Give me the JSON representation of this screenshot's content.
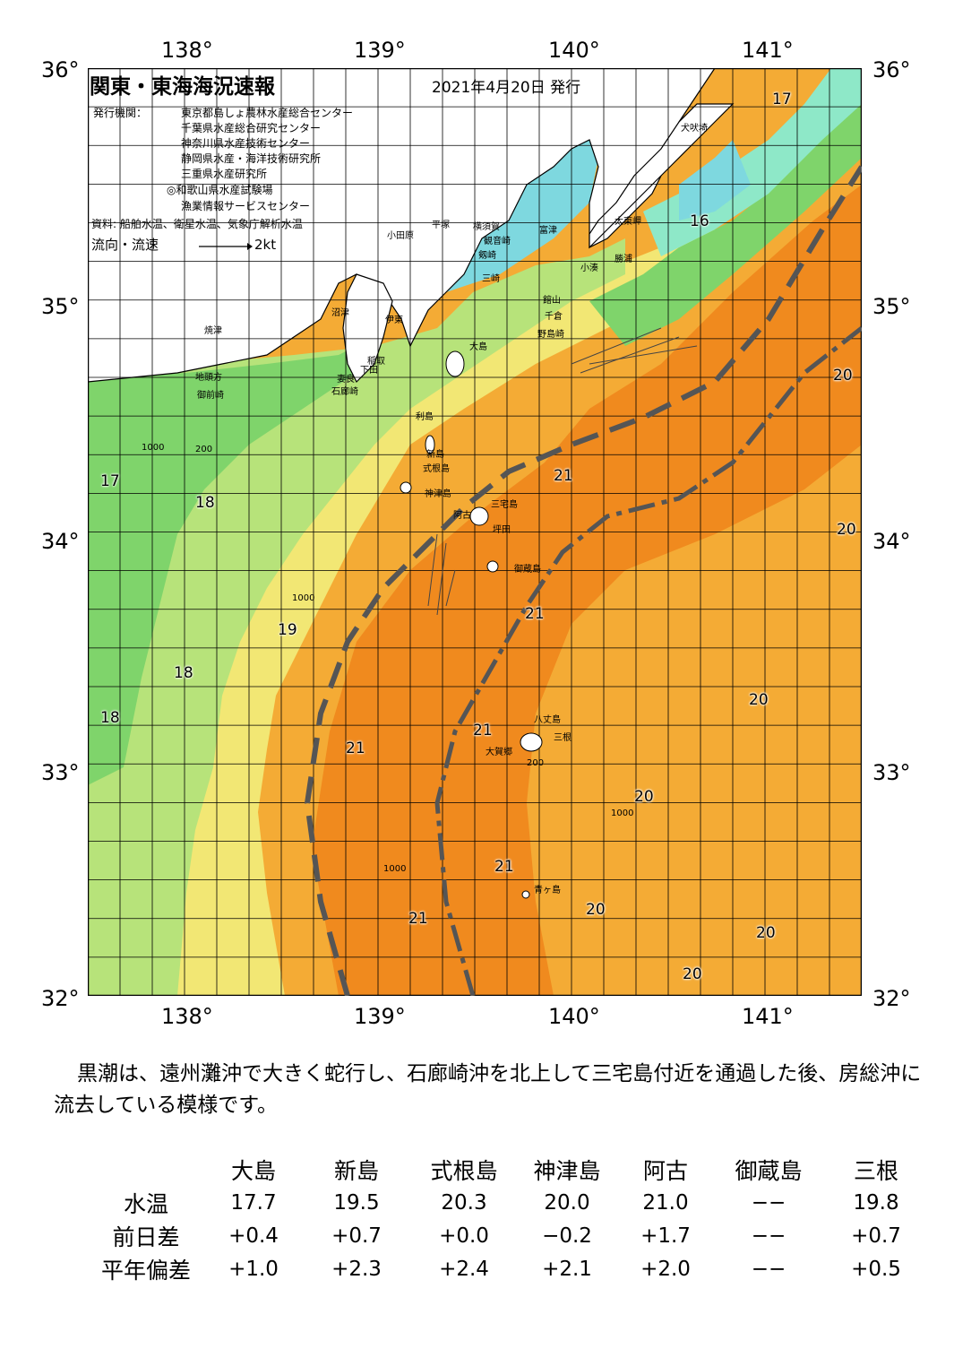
{
  "title": "関東・東海海況速報",
  "issue_date": "2021年4月20日 発行",
  "issuing_org_label": "発行機関：",
  "issuing_orgs": [
    "東京都島しょ農林水産総合センター",
    "千葉県水産総合研究センター",
    "神奈川県水産技術センター",
    "静岡県水産・海洋技術研究所",
    "三重県水産研究所",
    "◎和歌山県水産試験場",
    "漁業情報サービスセンター"
  ],
  "data_sources": "資料: 船舶水温、衛星水温、気象庁解析水温",
  "flow_legend": {
    "label": "流向・流速",
    "scale": "2kt"
  },
  "axes": {
    "lon_labels": [
      "138°",
      "139°",
      "140°",
      "141°"
    ],
    "lat_labels": [
      "36°",
      "35°",
      "34°",
      "33°",
      "32°"
    ]
  },
  "place_names": {
    "inubosaki": "犬吠埼",
    "taitomisaki": "太東岬",
    "katsuura": "勝浦",
    "kominato": "小湊",
    "futtsu": "富津",
    "yokosuka": "横須賀",
    "kannonzaki": "観音崎",
    "odawara": "小田原",
    "hiratsuka": "平塚",
    "tateyama": "館山",
    "chikura": "千倉",
    "nojimazaki": "野島崎",
    "numazu": "沼津",
    "ito": "伊東",
    "yaizu": "焼津",
    "omaezaki": "御前崎",
    "jitokata": "地頭方",
    "inatori": "稲取",
    "shimoda": "下田",
    "mera": "妻良",
    "irozaki": "石廊崎",
    "oshima": "大島",
    "toshima": "利島",
    "niijima": "新島",
    "shikinejima": "式根島",
    "kozushima": "神津島",
    "miyakejima": "三宅島",
    "tsubota": "坪田",
    "ako": "阿古",
    "mikurajima": "御蔵島",
    "hachijojima": "八丈島",
    "mitsune": "三根",
    "okago": "大賀郷",
    "aogashima": "青ヶ島",
    "tsurugizaki": "剱崎",
    "misaki": "三崎"
  },
  "temperature_labels": [
    "17",
    "16",
    "20",
    "21",
    "17",
    "18",
    "20",
    "21",
    "19",
    "18",
    "20",
    "18",
    "21",
    "21",
    "20",
    "21",
    "21",
    "20",
    "20",
    "20"
  ],
  "depth_labels": [
    "200",
    "1000"
  ],
  "description": "黒潮は、遠州灘沖で大きく蛇行し、石廊崎沖を北上して三宅島付近を通過した後、房総沖に流去している模様です。",
  "observation_table": {
    "columns": [
      "大島",
      "新島",
      "式根島",
      "神津島",
      "阿古",
      "御蔵島",
      "三根"
    ],
    "rows": [
      {
        "label": "水温",
        "values": [
          "17.7",
          "19.5",
          "20.3",
          "20.0",
          "21.0",
          "−−",
          "19.8"
        ]
      },
      {
        "label": "前日差",
        "values": [
          "+0.4",
          "+0.7",
          "+0.0",
          "−0.2",
          "+1.7",
          "−−",
          "+0.7"
        ]
      },
      {
        "label": "平年偏差",
        "values": [
          "+1.0",
          "+2.3",
          "+2.4",
          "+2.1",
          "+2.0",
          "−−",
          "+0.5"
        ]
      }
    ]
  },
  "colors": {
    "c15": "#7ed8df",
    "c16": "#8ee8c8",
    "c17": "#7fd46b",
    "c18": "#b7e37a",
    "c19": "#f2e774",
    "c20": "#f4ab35",
    "c21": "#f08a1e",
    "land": "#ffffff",
    "kuroshio": "#555555"
  }
}
